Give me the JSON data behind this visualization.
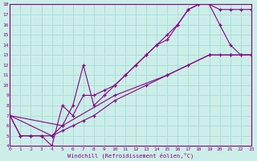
{
  "bg_color": "#cceee8",
  "line_color": "#880088",
  "grid_color": "#aadddd",
  "xlim_min": 0,
  "xlim_max": 23,
  "ylim_min": 4,
  "ylim_max": 18,
  "xlabel": "Windchill (Refroidissement éolien,°C)",
  "xticks": [
    0,
    1,
    2,
    3,
    4,
    5,
    6,
    7,
    8,
    9,
    10,
    11,
    12,
    13,
    14,
    15,
    16,
    17,
    18,
    19,
    20,
    21,
    22,
    23
  ],
  "yticks": [
    4,
    5,
    6,
    7,
    8,
    9,
    10,
    11,
    12,
    13,
    14,
    15,
    16,
    17,
    18
  ],
  "curves": [
    {
      "x": [
        0,
        1,
        2,
        3,
        4,
        5,
        6,
        7,
        8,
        9,
        10,
        11,
        12,
        13,
        14,
        15,
        16,
        17,
        18,
        19,
        20,
        21,
        22,
        23
      ],
      "y": [
        7,
        5,
        5,
        5,
        4,
        8,
        7,
        9,
        9,
        9.5,
        10,
        11,
        12,
        13,
        14,
        14.5,
        16,
        17.5,
        18,
        18,
        17.5,
        17.5,
        17.5,
        17.5
      ]
    },
    {
      "x": [
        0,
        1,
        2,
        3,
        4,
        5,
        6,
        7,
        8,
        9,
        10,
        11,
        12,
        13,
        14,
        15,
        16,
        17,
        18,
        19,
        20,
        21,
        22,
        23
      ],
      "y": [
        7,
        5,
        5,
        5,
        5,
        6,
        8,
        12,
        8,
        9,
        10,
        11,
        12,
        13,
        14,
        15,
        16,
        17.5,
        18,
        18,
        16,
        14,
        13,
        13
      ]
    },
    {
      "x": [
        0,
        5,
        10,
        15,
        19,
        20,
        21,
        22,
        23
      ],
      "y": [
        7,
        6,
        9,
        11,
        13,
        13,
        13,
        13,
        13
      ],
      "sparse": true
    },
    {
      "x": [
        0,
        4,
        5,
        6,
        7,
        8,
        10,
        13,
        15,
        17,
        19,
        21,
        23
      ],
      "y": [
        7,
        5,
        5.5,
        6,
        6.5,
        7,
        8.5,
        10,
        11,
        12,
        13,
        13,
        13
      ],
      "sparse": true
    }
  ]
}
